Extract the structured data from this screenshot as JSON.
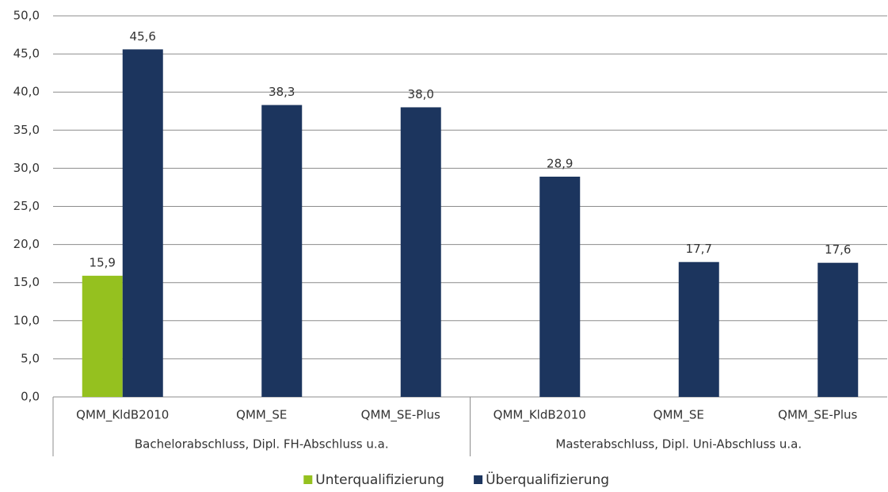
{
  "chart_data": {
    "type": "bar",
    "groups": [
      {
        "name": "Bachelorabschluss, Dipl. FH-Abschluss u.a.",
        "categories": [
          "QMM_KldB2010",
          "QMM_SE",
          "QMM_SE-Plus"
        ]
      },
      {
        "name": "Masterabschluss, Dipl. Uni-Abschluss u.a.",
        "categories": [
          "QMM_KldB2010",
          "QMM_SE",
          "QMM_SE-Plus"
        ]
      }
    ],
    "series": [
      {
        "name": "Unterqualifizierung",
        "color": "#95c11f",
        "values": [
          15.9,
          null,
          null,
          null,
          null,
          null
        ],
        "value_labels": [
          "15,9",
          null,
          null,
          null,
          null,
          null
        ]
      },
      {
        "name": "Überqualifizierung",
        "color": "#1c355e",
        "values": [
          45.6,
          38.3,
          38.0,
          28.9,
          17.7,
          17.6
        ],
        "value_labels": [
          "45,6",
          "38,3",
          "38,0",
          "28,9",
          "17,7",
          "17,6"
        ]
      }
    ],
    "ylim": [
      0,
      50
    ],
    "yticks": [
      {
        "value": 0,
        "label": "0,0"
      },
      {
        "value": 5,
        "label": "5,0"
      },
      {
        "value": 10,
        "label": "10,0"
      },
      {
        "value": 15,
        "label": "15,0"
      },
      {
        "value": 20,
        "label": "20,0"
      },
      {
        "value": 25,
        "label": "25,0"
      },
      {
        "value": 30,
        "label": "30,0"
      },
      {
        "value": 35,
        "label": "35,0"
      },
      {
        "value": 40,
        "label": "40,0"
      },
      {
        "value": 45,
        "label": "45,0"
      },
      {
        "value": 50,
        "label": "50,0"
      }
    ],
    "grid": true,
    "legend": "bottom"
  }
}
